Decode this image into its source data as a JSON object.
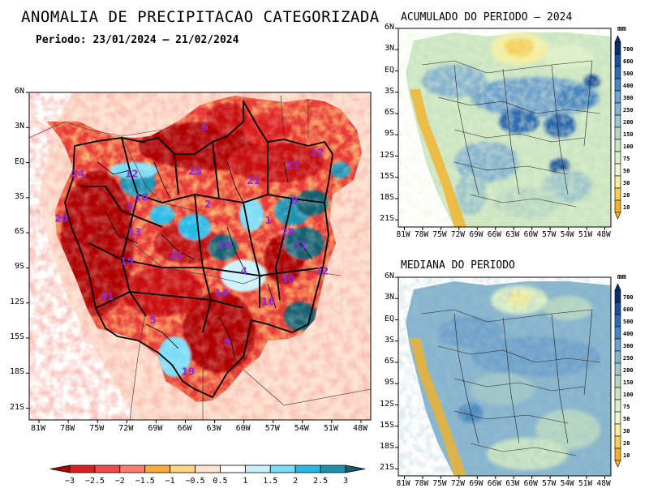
{
  "main_map": {
    "title": "ANOMALIA DE PRECIPITACAO CATEGORIZADA",
    "period": "Periodo: 23/01/2024 — 21/02/2024",
    "lat_ticks": [
      "6N",
      "3N",
      "EQ",
      "3S",
      "6S",
      "9S",
      "12S",
      "15S",
      "18S",
      "21S"
    ],
    "lon_ticks": [
      "81W",
      "78W",
      "75W",
      "72W",
      "69W",
      "66W",
      "63W",
      "60W",
      "57W",
      "54W",
      "51W",
      "48W"
    ],
    "basin_labels": [
      {
        "id": "6",
        "lon": -64.0,
        "lat": 3.0
      },
      {
        "id": "24",
        "lon": -77.0,
        "lat": -1.0
      },
      {
        "id": "12",
        "lon": -71.5,
        "lat": -1.0
      },
      {
        "id": "25",
        "lon": -65.0,
        "lat": -0.8
      },
      {
        "id": "21",
        "lon": -59.0,
        "lat": -1.6
      },
      {
        "id": "23",
        "lon": -55.0,
        "lat": -0.3
      },
      {
        "id": "22",
        "lon": -52.5,
        "lat": 0.8
      },
      {
        "id": "10",
        "lon": -70.5,
        "lat": -3.0
      },
      {
        "id": "3",
        "lon": -71.7,
        "lat": -3.8
      },
      {
        "id": "2",
        "lon": -63.7,
        "lat": -3.6
      },
      {
        "id": "8",
        "lon": -54.8,
        "lat": -3.3
      },
      {
        "id": "20",
        "lon": -78.7,
        "lat": -4.8
      },
      {
        "id": "13",
        "lon": -71.2,
        "lat": -6.0
      },
      {
        "id": "28",
        "lon": -55.5,
        "lat": -6.0
      },
      {
        "id": "1",
        "lon": -57.5,
        "lat": -5.0
      },
      {
        "id": "18",
        "lon": -62.0,
        "lat": -7.1
      },
      {
        "id": "11",
        "lon": -54.2,
        "lat": -7.1
      },
      {
        "id": "26",
        "lon": -67.0,
        "lat": -8.0
      },
      {
        "id": "15",
        "lon": -72.0,
        "lat": -8.5
      },
      {
        "id": "4",
        "lon": -60.0,
        "lat": -9.3
      },
      {
        "id": "32",
        "lon": -52.0,
        "lat": -9.3
      },
      {
        "id": "30",
        "lon": -55.5,
        "lat": -10.0
      },
      {
        "id": "14",
        "lon": -62.3,
        "lat": -11.2
      },
      {
        "id": "31",
        "lon": -74.0,
        "lat": -11.5
      },
      {
        "id": "16",
        "lon": -57.5,
        "lat": -11.9
      },
      {
        "id": "5",
        "lon": -69.3,
        "lat": -13.5
      },
      {
        "id": "9",
        "lon": -61.7,
        "lat": -15.4
      },
      {
        "id": "19",
        "lon": -65.7,
        "lat": -17.9
      }
    ]
  },
  "colorbar": {
    "labels": [
      "−3",
      "−2.5",
      "−2",
      "−1.5",
      "−1",
      "−0.5",
      "0.5",
      "1",
      "1.5",
      "2",
      "2.5",
      "3"
    ],
    "colors": [
      "#b00000",
      "#dd1e1e",
      "#f04a4a",
      "#fa7d6e",
      "#fbaa3c",
      "#fdd680",
      "#fde3d2",
      "#ffffff",
      "#c8f1fa",
      "#7adcf5",
      "#28bae6",
      "#1b91b0",
      "#145e6e"
    ]
  },
  "acumulado": {
    "title": "ACUMULADO DO PERIODO — 2024",
    "lat_ticks": [
      "6N",
      "3N",
      "EQ",
      "3S",
      "6S",
      "9S",
      "12S",
      "15S",
      "18S",
      "21S"
    ],
    "lon_ticks": [
      "81W",
      "78W",
      "75W",
      "72W",
      "69W",
      "66W",
      "63W",
      "60W",
      "57W",
      "54W",
      "51W",
      "48W"
    ]
  },
  "mediana": {
    "title": "MEDIANA DO PERIODO",
    "lat_ticks": [
      "6N",
      "3N",
      "EQ",
      "3S",
      "6S",
      "9S",
      "12S",
      "15S",
      "18S",
      "21S"
    ],
    "lon_ticks": [
      "81W",
      "78W",
      "75W",
      "72W",
      "69W",
      "66W",
      "63W",
      "60W",
      "57W",
      "54W",
      "51W",
      "48W"
    ]
  },
  "mm_colorbar": {
    "unit": "mm",
    "labels": [
      "700",
      "600",
      "500",
      "400",
      "300",
      "250",
      "200",
      "150",
      "100",
      "75",
      "50",
      "30",
      "20",
      "10"
    ],
    "colors": [
      "#08306b",
      "#1d4f9a",
      "#2e6bb0",
      "#4a86c0",
      "#6fa2cc",
      "#87b4cf",
      "#9fc6c9",
      "#b7d7c2",
      "#cbe5c2",
      "#dcefc8",
      "#eaf6d2",
      "#f6ee9e",
      "#f7d05c",
      "#f3b228"
    ]
  }
}
